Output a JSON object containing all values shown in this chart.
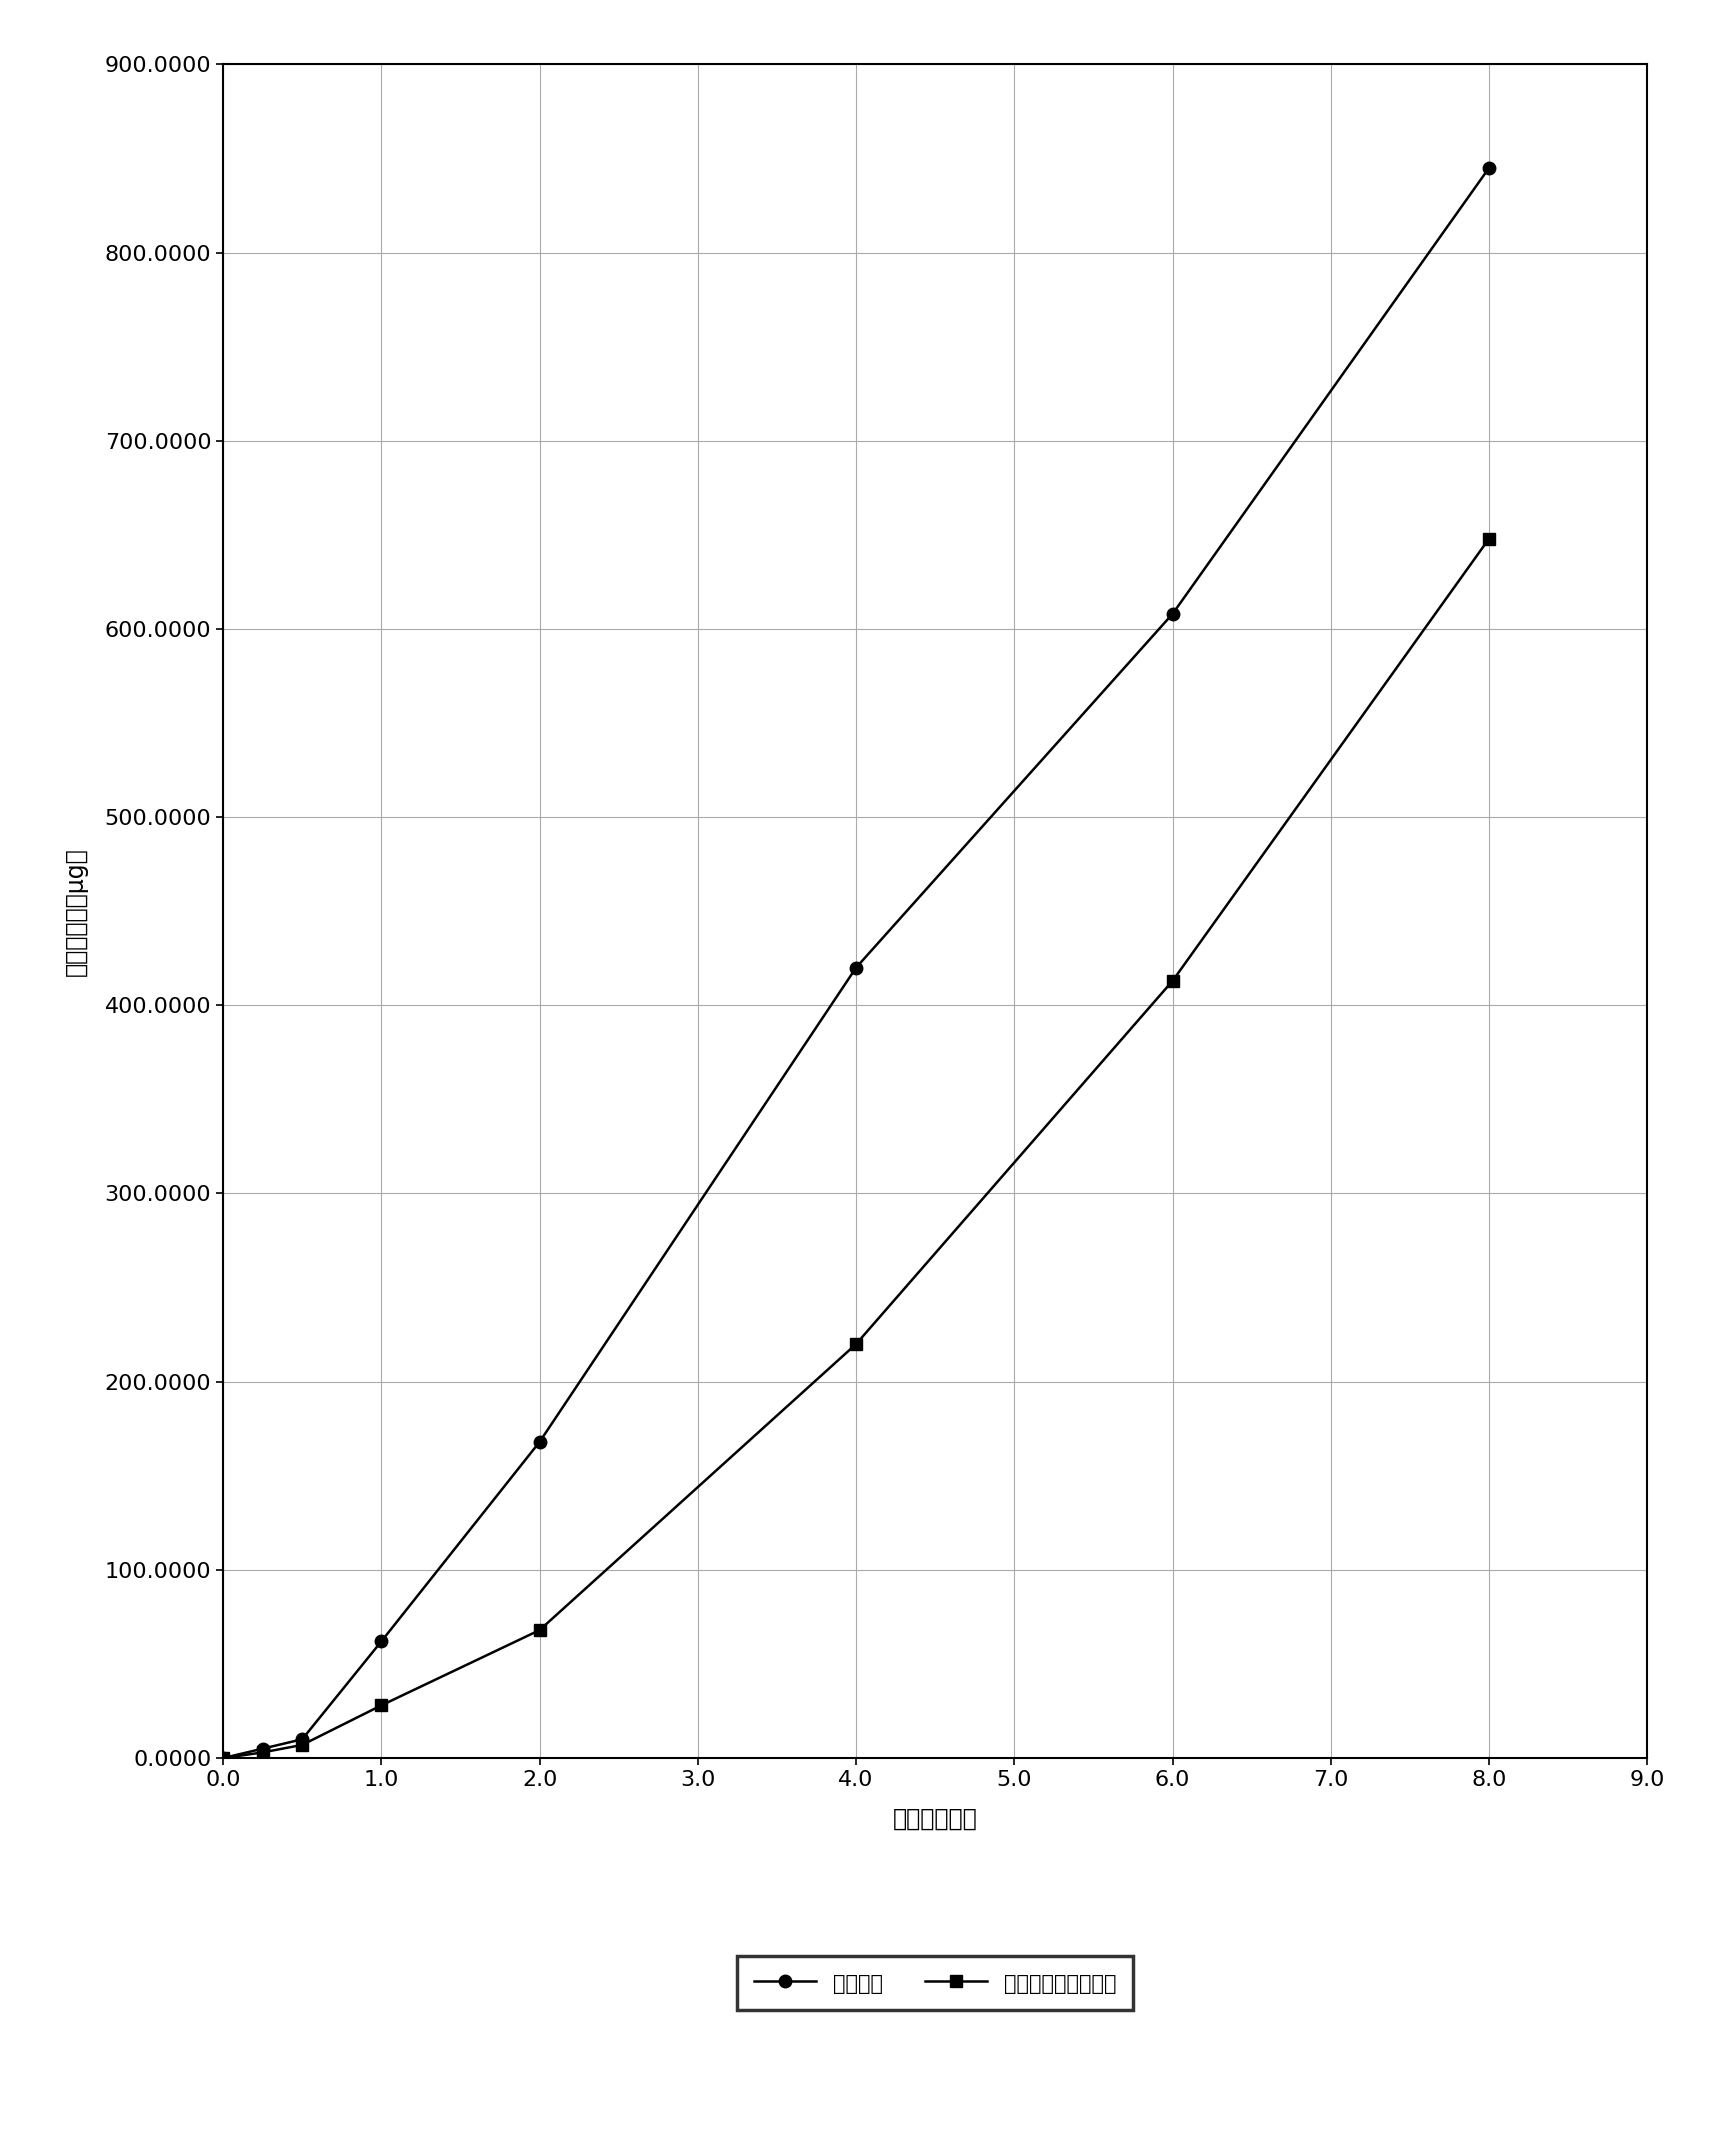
{
  "series1_label": "自制样品",
  "series2_label": "市售样品（扶他林）",
  "series1_x": [
    0,
    0.25,
    0.5,
    1.0,
    2.0,
    4.0,
    6.0,
    8.0
  ],
  "series1_y": [
    0,
    5,
    10,
    62,
    168,
    420,
    608,
    845
  ],
  "series2_x": [
    0,
    0.25,
    0.5,
    1.0,
    2.0,
    4.0,
    6.0,
    8.0
  ],
  "series2_y": [
    0,
    3,
    7,
    28,
    68,
    220,
    413,
    648
  ],
  "xlabel": "时间（小时）",
  "ylabel": "累积透皮量（μg）",
  "xlim": [
    0,
    9.0
  ],
  "ylim": [
    0,
    900
  ],
  "xticks": [
    0.0,
    1.0,
    2.0,
    3.0,
    4.0,
    5.0,
    6.0,
    7.0,
    8.0,
    9.0
  ],
  "yticks": [
    0.0,
    100.0,
    200.0,
    300.0,
    400.0,
    500.0,
    600.0,
    700.0,
    800.0,
    900.0
  ],
  "ytick_labels": [
    "0.0000",
    "100.0000",
    "200.0000",
    "300.0000",
    "400.0000",
    "500.0000",
    "600.0000",
    "700.0000",
    "800.0000",
    "900.0000"
  ],
  "xtick_labels": [
    "0.0",
    "1.0",
    "2.0",
    "3.0",
    "4.0",
    "5.0",
    "6.0",
    "7.0",
    "8.0",
    "9.0"
  ],
  "line_color": "#000000",
  "marker1": "o",
  "marker2": "s",
  "background_color": "#ffffff",
  "grid_color": "#aaaaaa",
  "tick_fontsize": 16,
  "label_fontsize": 17,
  "legend_fontsize": 15
}
